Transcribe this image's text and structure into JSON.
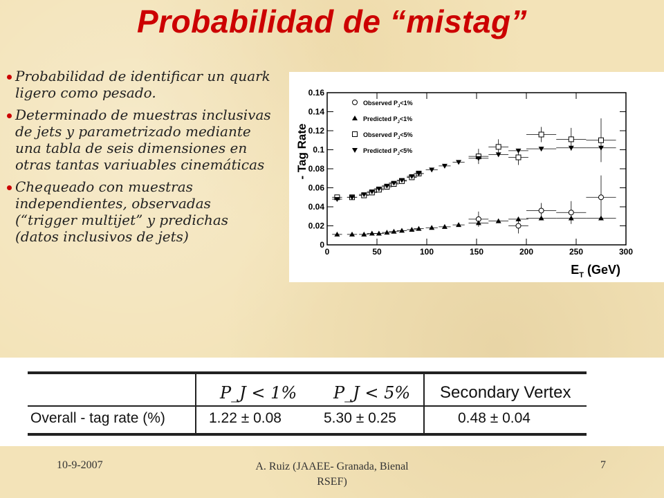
{
  "slide": {
    "title": "Probabilidad de “mistag”",
    "bullets": [
      "Probabilidad de identificar un quark ligero como pesado.",
      "Determinado de muestras inclusivas de jets y parametrizado mediante una tabla de seis dimensiones en otras tantas variuables cinemáticas",
      "Chequeado con muestras independientes, observadas (“trigger multijet” y predichas (datos inclusivos de jets)"
    ],
    "footer": {
      "date": "10-9-2007",
      "author_line1": "A. Ruiz (JAAEE- Granada, Bienal",
      "author_line2": "RSEF)",
      "page": "7"
    }
  },
  "chart_data": {
    "type": "scatter",
    "xlabel": "E_T^J (GeV)",
    "ylabel": "- Tag Rate",
    "xlim": [
      0,
      300
    ],
    "ylim": [
      0,
      0.16
    ],
    "xticks": [
      "0",
      "50",
      "100",
      "150",
      "200",
      "250",
      "300"
    ],
    "yticks": [
      "0",
      "0.02",
      "0.04",
      "0.06",
      "0.08",
      "0.1",
      "0.12",
      "0.14",
      "0.16"
    ],
    "legend_position": "top-left",
    "series": [
      {
        "name": "Observed P_J<1%",
        "marker": "open-circle",
        "points": [
          [
            152,
            0.027
          ],
          [
            192,
            0.02
          ],
          [
            215,
            0.036
          ],
          [
            245,
            0.034
          ],
          [
            275,
            0.05
          ]
        ]
      },
      {
        "name": "Predicted P_J<1%",
        "marker": "filled-triangle-up",
        "points": [
          [
            10,
            0.011
          ],
          [
            25,
            0.011
          ],
          [
            37,
            0.011
          ],
          [
            45,
            0.012
          ],
          [
            52,
            0.012
          ],
          [
            60,
            0.013
          ],
          [
            67,
            0.014
          ],
          [
            75,
            0.015
          ],
          [
            85,
            0.016
          ],
          [
            92,
            0.017
          ],
          [
            105,
            0.018
          ],
          [
            118,
            0.019
          ],
          [
            132,
            0.021
          ],
          [
            152,
            0.023
          ],
          [
            172,
            0.025
          ],
          [
            192,
            0.027
          ],
          [
            215,
            0.028
          ],
          [
            245,
            0.028
          ],
          [
            275,
            0.028
          ]
        ]
      },
      {
        "name": "Observed P_J<5%",
        "marker": "open-square",
        "points": [
          [
            10,
            0.05
          ],
          [
            25,
            0.05
          ],
          [
            37,
            0.052
          ],
          [
            45,
            0.055
          ],
          [
            52,
            0.058
          ],
          [
            60,
            0.061
          ],
          [
            67,
            0.064
          ],
          [
            75,
            0.067
          ],
          [
            85,
            0.071
          ],
          [
            92,
            0.075
          ],
          [
            152,
            0.093
          ],
          [
            172,
            0.103
          ],
          [
            192,
            0.092
          ],
          [
            215,
            0.116
          ],
          [
            245,
            0.111
          ],
          [
            275,
            0.11
          ]
        ]
      },
      {
        "name": "Predicted P_J<5%",
        "marker": "filled-triangle-down",
        "points": [
          [
            10,
            0.048
          ],
          [
            25,
            0.05
          ],
          [
            37,
            0.053
          ],
          [
            45,
            0.056
          ],
          [
            52,
            0.059
          ],
          [
            60,
            0.062
          ],
          [
            67,
            0.065
          ],
          [
            75,
            0.068
          ],
          [
            85,
            0.072
          ],
          [
            92,
            0.075
          ],
          [
            105,
            0.079
          ],
          [
            118,
            0.083
          ],
          [
            132,
            0.087
          ],
          [
            152,
            0.091
          ],
          [
            172,
            0.095
          ],
          [
            192,
            0.099
          ],
          [
            215,
            0.101
          ],
          [
            245,
            0.102
          ],
          [
            275,
            0.102
          ]
        ]
      }
    ]
  },
  "table": {
    "headers": [
      "",
      "P_J < 1%",
      "P_J < 5%",
      "Secondary Vertex"
    ],
    "rows": [
      [
        "Overall - tag rate (%)",
        "1.22 ± 0.08",
        "5.30 ± 0.25",
        "0.48 ± 0.04"
      ]
    ]
  }
}
